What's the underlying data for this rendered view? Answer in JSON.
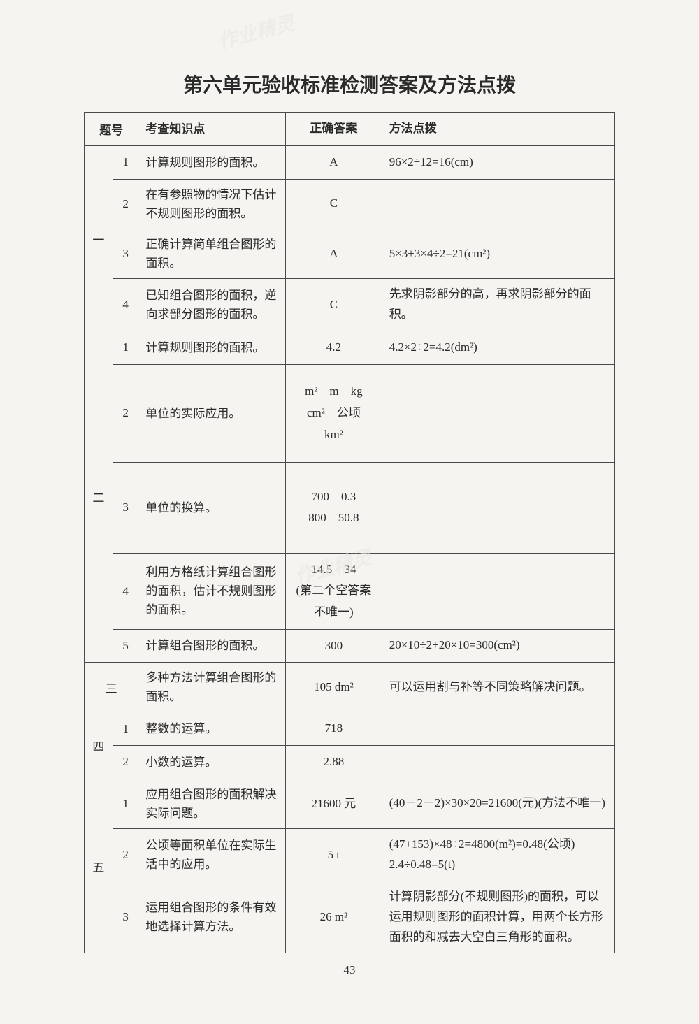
{
  "watermark_text": "作业精灵",
  "title": "第六单元验收标准检测答案及方法点拨",
  "page_number": "43",
  "headers": {
    "group": "题号",
    "topic": "考查知识点",
    "answer": "正确答案",
    "hint": "方法点拨"
  },
  "groups": {
    "g1": "一",
    "g2": "二",
    "g3": "三",
    "g4": "四",
    "g5": "五"
  },
  "rows": {
    "r1_1": {
      "num": "1",
      "topic": "计算规则图形的面积。",
      "answer": "A",
      "hint": "96×2÷12=16(cm)"
    },
    "r1_2": {
      "num": "2",
      "topic": "在有参照物的情况下估计不规则图形的面积。",
      "answer": "C",
      "hint": ""
    },
    "r1_3": {
      "num": "3",
      "topic": "正确计算简单组合图形的面积。",
      "answer": "A",
      "hint": "5×3+3×4÷2=21(cm²)"
    },
    "r1_4": {
      "num": "4",
      "topic": "已知组合图形的面积，逆向求部分图形的面积。",
      "answer": "C",
      "hint": "先求阴影部分的高，再求阴影部分的面积。"
    },
    "r2_1": {
      "num": "1",
      "topic": "计算规则图形的面积。",
      "answer": "4.2",
      "hint": "4.2×2÷2=4.2(dm²)"
    },
    "r2_2": {
      "num": "2",
      "topic": "单位的实际应用。",
      "answer": "m²　m　kg\ncm²　公顷\nkm²",
      "hint": ""
    },
    "r2_3": {
      "num": "3",
      "topic": "单位的换算。",
      "answer": "700　0.3\n800　50.8",
      "hint": ""
    },
    "r2_4": {
      "num": "4",
      "topic": "利用方格纸计算组合图形的面积，估计不规则图形的面积。",
      "answer": "14.5　34\n(第二个空答案不唯一)",
      "hint": ""
    },
    "r2_5": {
      "num": "5",
      "topic": "计算组合图形的面积。",
      "answer": "300",
      "hint": "20×10÷2+20×10=300(cm²)"
    },
    "r3": {
      "topic": "多种方法计算组合图形的面积。",
      "answer": "105 dm²",
      "hint": "可以运用割与补等不同策略解决问题。"
    },
    "r4_1": {
      "num": "1",
      "topic": "整数的运算。",
      "answer": "718",
      "hint": ""
    },
    "r4_2": {
      "num": "2",
      "topic": "小数的运算。",
      "answer": "2.88",
      "hint": ""
    },
    "r5_1": {
      "num": "1",
      "topic": "应用组合图形的面积解决实际问题。",
      "answer": "21600 元",
      "hint": "(40－2－2)×30×20=21600(元)(方法不唯一)"
    },
    "r5_2": {
      "num": "2",
      "topic": "公顷等面积单位在实际生活中的应用。",
      "answer": "5 t",
      "hint": "(47+153)×48÷2=4800(m²)=0.48(公顷)\n2.4÷0.48=5(t)"
    },
    "r5_3": {
      "num": "3",
      "topic": "运用组合图形的条件有效地选择计算方法。",
      "answer": "26 m²",
      "hint": "计算阴影部分(不规则图形)的面积，可以运用规则图形的面积计算，用两个长方形面积的和减去大空白三角形的面积。"
    }
  }
}
